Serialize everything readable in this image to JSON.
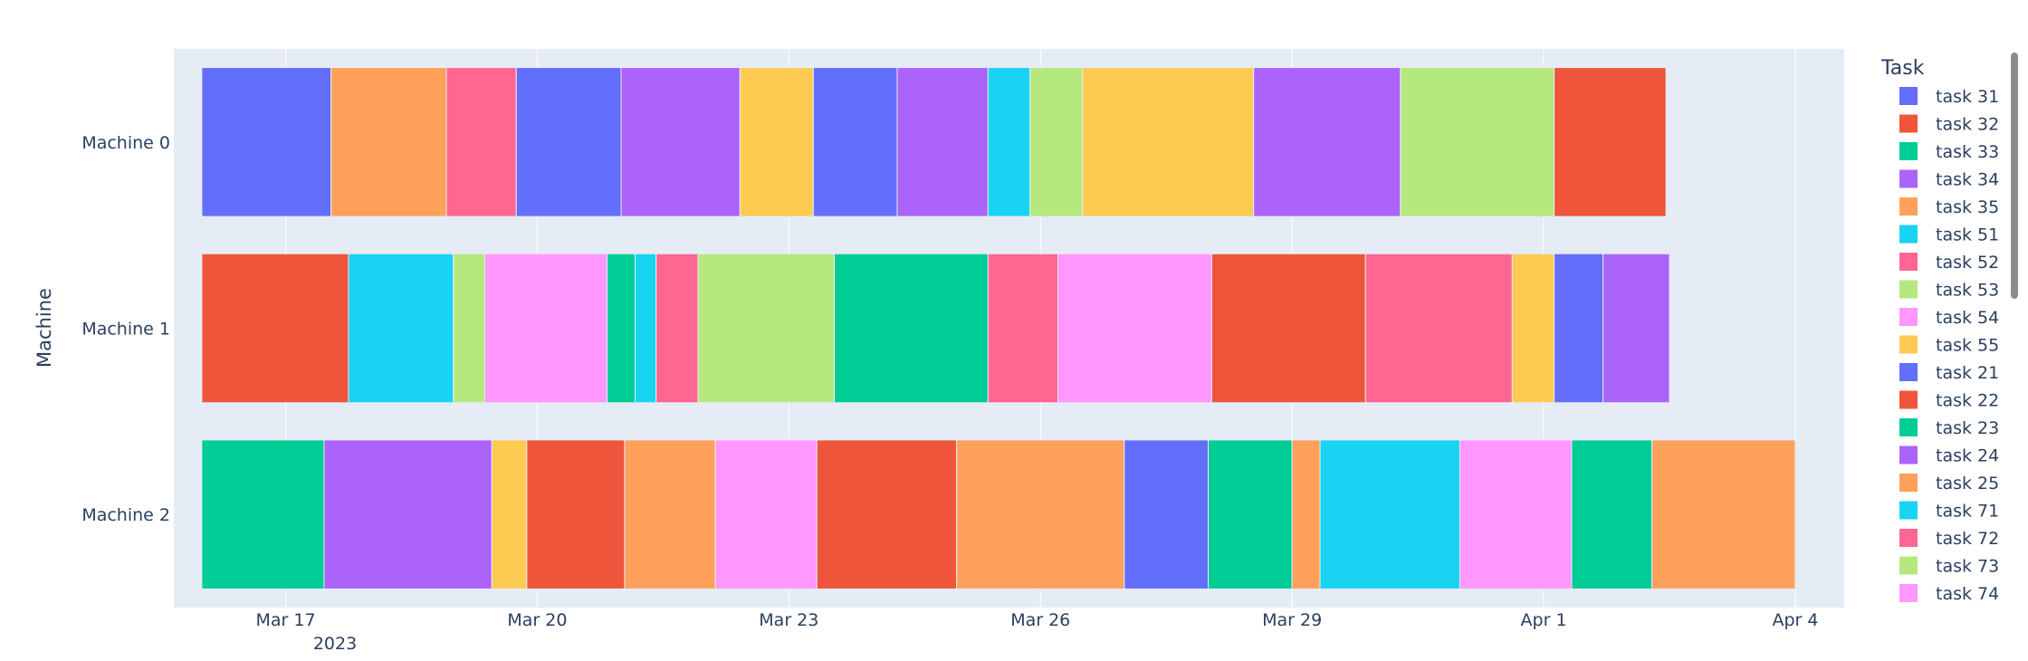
{
  "chart_data": {
    "type": "gantt",
    "title": "",
    "xlabel": "",
    "ylabel": "Machine",
    "legend_title": "Task",
    "x_start_year_label": "2023",
    "xlim": [
      "2023-03-15T16:00",
      "2023-04-04T14:00"
    ],
    "x_ticks": [
      {
        "date": "2023-03-17",
        "label": "Mar 17"
      },
      {
        "date": "2023-03-20",
        "label": "Mar 20"
      },
      {
        "date": "2023-03-23",
        "label": "Mar 23"
      },
      {
        "date": "2023-03-26",
        "label": "Mar 26"
      },
      {
        "date": "2023-03-29",
        "label": "Mar 29"
      },
      {
        "date": "2023-04-01",
        "label": "Apr 1"
      },
      {
        "date": "2023-04-04",
        "label": "Apr 4"
      }
    ],
    "machines": [
      "Machine 0",
      "Machine 1",
      "Machine 2"
    ],
    "legend": [
      {
        "task": "task 31",
        "color": "#636efa"
      },
      {
        "task": "task 32",
        "color": "#ef553b"
      },
      {
        "task": "task 33",
        "color": "#00cc96"
      },
      {
        "task": "task 34",
        "color": "#ab63fa"
      },
      {
        "task": "task 35",
        "color": "#ffa15a"
      },
      {
        "task": "task 51",
        "color": "#19d3f3"
      },
      {
        "task": "task 52",
        "color": "#ff6692"
      },
      {
        "task": "task 53",
        "color": "#b6e880"
      },
      {
        "task": "task 54",
        "color": "#ff97ff"
      },
      {
        "task": "task 55",
        "color": "#fecb52"
      },
      {
        "task": "task 21",
        "color": "#636efa"
      },
      {
        "task": "task 22",
        "color": "#ef553b"
      },
      {
        "task": "task 23",
        "color": "#00cc96"
      },
      {
        "task": "task 24",
        "color": "#ab63fa"
      },
      {
        "task": "task 25",
        "color": "#ffa15a"
      },
      {
        "task": "task 71",
        "color": "#19d3f3"
      },
      {
        "task": "task 72",
        "color": "#ff6692"
      },
      {
        "task": "task 73",
        "color": "#b6e880"
      },
      {
        "task": "task 74",
        "color": "#ff97ff"
      }
    ],
    "bars": [
      {
        "machine": "Machine 0",
        "start": "2023-03-16T00:00",
        "end": "2023-03-17T13:00",
        "color": "#636efa"
      },
      {
        "machine": "Machine 0",
        "start": "2023-03-17T13:00",
        "end": "2023-03-18T22:00",
        "color": "#ffa15a"
      },
      {
        "machine": "Machine 0",
        "start": "2023-03-18T22:00",
        "end": "2023-03-19T18:00",
        "color": "#ff6692"
      },
      {
        "machine": "Machine 0",
        "start": "2023-03-19T18:00",
        "end": "2023-03-21T00:00",
        "color": "#636efa"
      },
      {
        "machine": "Machine 0",
        "start": "2023-03-21T00:00",
        "end": "2023-03-22T10:00",
        "color": "#ab63fa"
      },
      {
        "machine": "Machine 0",
        "start": "2023-03-22T10:00",
        "end": "2023-03-23T07:00",
        "color": "#fecb52"
      },
      {
        "machine": "Machine 0",
        "start": "2023-03-23T07:00",
        "end": "2023-03-24T07:00",
        "color": "#636efa"
      },
      {
        "machine": "Machine 0",
        "start": "2023-03-24T07:00",
        "end": "2023-03-25T09:00",
        "color": "#ab63fa"
      },
      {
        "machine": "Machine 0",
        "start": "2023-03-25T09:00",
        "end": "2023-03-25T21:00",
        "color": "#19d3f3"
      },
      {
        "machine": "Machine 0",
        "start": "2023-03-25T21:00",
        "end": "2023-03-26T12:00",
        "color": "#b6e880"
      },
      {
        "machine": "Machine 0",
        "start": "2023-03-26T12:00",
        "end": "2023-03-28T13:00",
        "color": "#fecb52"
      },
      {
        "machine": "Machine 0",
        "start": "2023-03-28T13:00",
        "end": "2023-03-30T07:00",
        "color": "#ab63fa"
      },
      {
        "machine": "Machine 0",
        "start": "2023-03-30T07:00",
        "end": "2023-04-01T03:00",
        "color": "#b6e880"
      },
      {
        "machine": "Machine 0",
        "start": "2023-04-01T03:00",
        "end": "2023-04-02T11:00",
        "color": "#ef553b"
      },
      {
        "machine": "Machine 1",
        "start": "2023-03-16T00:00",
        "end": "2023-03-17T18:00",
        "color": "#ef553b"
      },
      {
        "machine": "Machine 1",
        "start": "2023-03-17T18:00",
        "end": "2023-03-19T00:00",
        "color": "#19d3f3"
      },
      {
        "machine": "Machine 1",
        "start": "2023-03-19T00:00",
        "end": "2023-03-19T09:00",
        "color": "#b6e880"
      },
      {
        "machine": "Machine 1",
        "start": "2023-03-19T09:00",
        "end": "2023-03-20T20:00",
        "color": "#ff97ff"
      },
      {
        "machine": "Machine 1",
        "start": "2023-03-20T20:00",
        "end": "2023-03-21T04:00",
        "color": "#00cc96"
      },
      {
        "machine": "Machine 1",
        "start": "2023-03-21T04:00",
        "end": "2023-03-21T10:00",
        "color": "#19d3f3"
      },
      {
        "machine": "Machine 1",
        "start": "2023-03-21T10:00",
        "end": "2023-03-21T22:00",
        "color": "#ff6692"
      },
      {
        "machine": "Machine 1",
        "start": "2023-03-21T22:00",
        "end": "2023-03-23T13:00",
        "color": "#b6e880"
      },
      {
        "machine": "Machine 1",
        "start": "2023-03-23T13:00",
        "end": "2023-03-25T09:00",
        "color": "#00cc96"
      },
      {
        "machine": "Machine 1",
        "start": "2023-03-25T09:00",
        "end": "2023-03-26T05:00",
        "color": "#ff6692"
      },
      {
        "machine": "Machine 1",
        "start": "2023-03-26T05:00",
        "end": "2023-03-28T01:00",
        "color": "#ff97ff"
      },
      {
        "machine": "Machine 1",
        "start": "2023-03-28T01:00",
        "end": "2023-03-29T21:00",
        "color": "#ef553b"
      },
      {
        "machine": "Machine 1",
        "start": "2023-03-29T21:00",
        "end": "2023-03-31T15:00",
        "color": "#ff6692"
      },
      {
        "machine": "Machine 1",
        "start": "2023-03-31T15:00",
        "end": "2023-04-01T03:00",
        "color": "#fecb52"
      },
      {
        "machine": "Machine 1",
        "start": "2023-04-01T03:00",
        "end": "2023-04-01T17:00",
        "color": "#636efa"
      },
      {
        "machine": "Machine 1",
        "start": "2023-04-01T17:00",
        "end": "2023-04-02T12:00",
        "color": "#ab63fa"
      },
      {
        "machine": "Machine 2",
        "start": "2023-03-16T00:00",
        "end": "2023-03-17T11:00",
        "color": "#00cc96"
      },
      {
        "machine": "Machine 2",
        "start": "2023-03-17T11:00",
        "end": "2023-03-19T11:00",
        "color": "#ab63fa"
      },
      {
        "machine": "Machine 2",
        "start": "2023-03-19T11:00",
        "end": "2023-03-19T21:00",
        "color": "#fecb52"
      },
      {
        "machine": "Machine 2",
        "start": "2023-03-19T21:00",
        "end": "2023-03-21T01:00",
        "color": "#ef553b"
      },
      {
        "machine": "Machine 2",
        "start": "2023-03-21T01:00",
        "end": "2023-03-22T03:00",
        "color": "#ffa15a"
      },
      {
        "machine": "Machine 2",
        "start": "2023-03-22T03:00",
        "end": "2023-03-23T08:00",
        "color": "#ff97ff"
      },
      {
        "machine": "Machine 2",
        "start": "2023-03-23T08:00",
        "end": "2023-03-25T00:00",
        "color": "#ef553b"
      },
      {
        "machine": "Machine 2",
        "start": "2023-03-25T00:00",
        "end": "2023-03-27T00:00",
        "color": "#ffa15a"
      },
      {
        "machine": "Machine 2",
        "start": "2023-03-27T00:00",
        "end": "2023-03-28T00:00",
        "color": "#636efa"
      },
      {
        "machine": "Machine 2",
        "start": "2023-03-28T00:00",
        "end": "2023-03-29T00:00",
        "color": "#00cc96"
      },
      {
        "machine": "Machine 2",
        "start": "2023-03-29T00:00",
        "end": "2023-03-29T08:00",
        "color": "#ffa15a"
      },
      {
        "machine": "Machine 2",
        "start": "2023-03-29T08:00",
        "end": "2023-03-31T00:00",
        "color": "#19d3f3"
      },
      {
        "machine": "Machine 2",
        "start": "2023-03-31T00:00",
        "end": "2023-04-01T08:00",
        "color": "#ff97ff"
      },
      {
        "machine": "Machine 2",
        "start": "2023-04-01T08:00",
        "end": "2023-04-02T07:00",
        "color": "#00cc96"
      },
      {
        "machine": "Machine 2",
        "start": "2023-04-02T07:00",
        "end": "2023-04-04T00:00",
        "color": "#ffa15a"
      }
    ]
  }
}
